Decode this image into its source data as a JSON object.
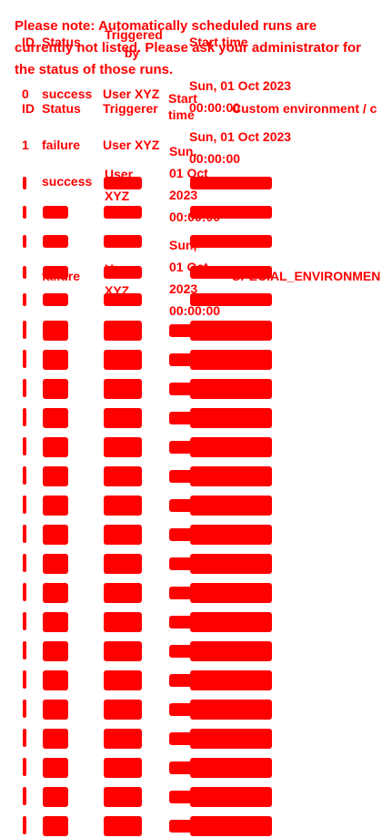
{
  "note": "Please note: Automatically scheduled runs are currently not listed. Please ask your administrator for the status of those runs.",
  "header": {
    "id": "ID",
    "status": "Status",
    "triggered_by": "Triggered by",
    "start_time": "Start time"
  },
  "mobile_labels": {
    "id": "ID",
    "status": "Status",
    "triggerer": "Triggerer",
    "start_time": "Start time"
  },
  "rows": [
    {
      "id": "0",
      "status": "success",
      "user": "User XYZ",
      "start": "Sun, 01 Oct 2023 00:00:00",
      "environment": "Custom environment / c"
    },
    {
      "id": "1",
      "status": "failure",
      "user": "User XYZ",
      "start": "Sun, 01 Oct 2023 00:00:00",
      "environment": ""
    },
    {
      "id": "",
      "status": "success",
      "user": "User XYZ",
      "start": "Sun, 01 Oct 2023 00:00:00",
      "environment": ""
    },
    {
      "id": "",
      "status": "failure",
      "user": "User XYZ",
      "start": "Sun, 01 Oct 2023 00:00:00",
      "environment": "SPECIAL_ENVIRONMEN"
    }
  ]
}
